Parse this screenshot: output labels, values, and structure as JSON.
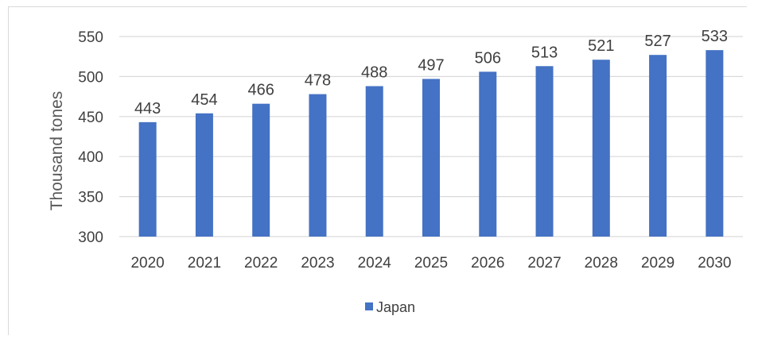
{
  "chart_data": {
    "type": "bar",
    "title": "",
    "xlabel": "",
    "ylabel": "Thousand tones",
    "ylim": [
      300,
      550
    ],
    "yticks": [
      300,
      350,
      400,
      450,
      500,
      550
    ],
    "grid": true,
    "legend_position": "bottom",
    "categories": [
      "2020",
      "2021",
      "2022",
      "2023",
      "2024",
      "2025",
      "2026",
      "2027",
      "2028",
      "2029",
      "2030"
    ],
    "series": [
      {
        "name": "Japan",
        "color": "#4472c4",
        "values": [
          443,
          454,
          466,
          478,
          488,
          497,
          506,
          513,
          521,
          527,
          533
        ]
      }
    ]
  }
}
